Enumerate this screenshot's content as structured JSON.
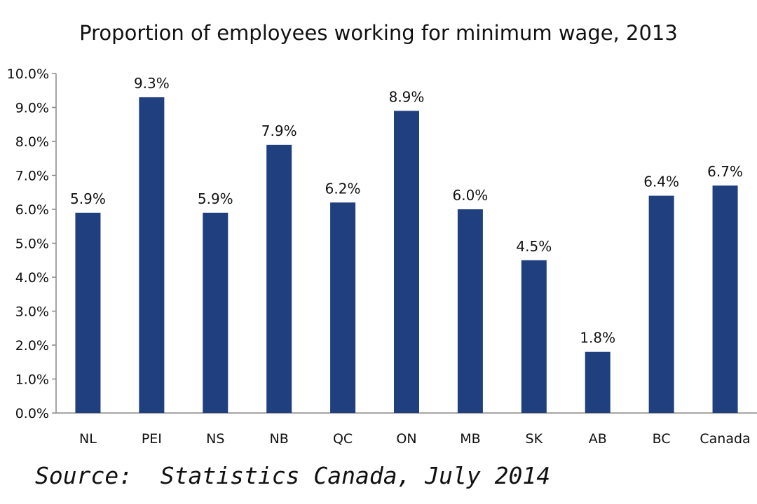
{
  "chart_data": {
    "type": "bar",
    "title": "Proportion of employees working for minimum wage, 2013",
    "categories": [
      "NL",
      "PEI",
      "NS",
      "NB",
      "QC",
      "ON",
      "MB",
      "SK",
      "AB",
      "BC",
      "Canada"
    ],
    "series": [
      {
        "values": [
          5.9,
          9.3,
          5.9,
          7.9,
          6.2,
          8.9,
          6.0,
          4.5,
          1.8,
          6.4,
          6.7
        ]
      }
    ],
    "data_labels": [
      "5.9%",
      "9.3%",
      "5.9%",
      "7.9%",
      "6.2%",
      "8.9%",
      "6.0%",
      "4.5%",
      "1.8%",
      "6.4%",
      "6.7%"
    ],
    "ylim": [
      0,
      10
    ],
    "y_ticks": [
      0,
      1,
      2,
      3,
      4,
      5,
      6,
      7,
      8,
      9,
      10
    ],
    "y_tick_labels": [
      "0.0%",
      "1.0%",
      "2.0%",
      "3.0%",
      "4.0%",
      "5.0%",
      "6.0%",
      "7.0%",
      "8.0%",
      "9.0%",
      "10.0%"
    ],
    "xlabel": "",
    "ylabel": "",
    "grid": false,
    "legend": "none",
    "bar_color": "#1f3f7f"
  },
  "source_text": "Source:  Statistics Canada, July 2014"
}
